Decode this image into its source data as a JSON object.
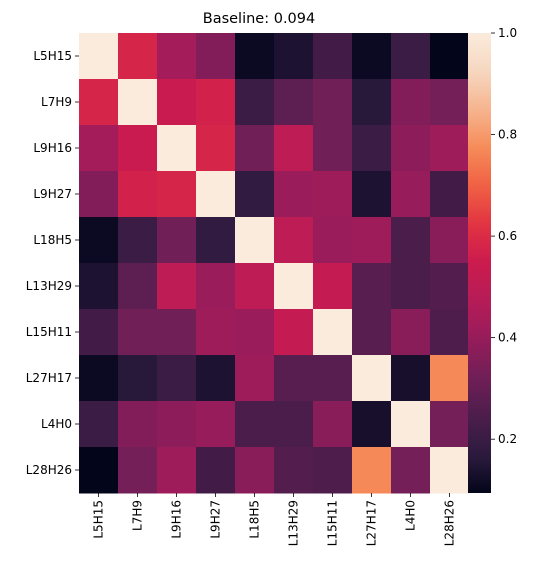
{
  "chart_data": {
    "type": "heatmap",
    "title": "Baseline: 0.094",
    "xlabel": "",
    "ylabel": "",
    "rows": [
      "L5H15",
      "L7H9",
      "L9H16",
      "L9H27",
      "L18H5",
      "L13H29",
      "L15H11",
      "L27H17",
      "L4H0",
      "L28H26"
    ],
    "cols": [
      "L5H15",
      "L7H9",
      "L9H16",
      "L9H27",
      "L18H5",
      "L13H29",
      "L15H11",
      "L27H17",
      "L4H0",
      "L28H26"
    ],
    "values": [
      [
        1.0,
        0.58,
        0.43,
        0.36,
        0.11,
        0.14,
        0.22,
        0.11,
        0.2,
        0.09
      ],
      [
        0.58,
        1.0,
        0.54,
        0.57,
        0.2,
        0.28,
        0.32,
        0.16,
        0.36,
        0.33
      ],
      [
        0.43,
        0.54,
        1.0,
        0.58,
        0.32,
        0.5,
        0.32,
        0.2,
        0.38,
        0.42
      ],
      [
        0.36,
        0.57,
        0.58,
        1.0,
        0.18,
        0.41,
        0.42,
        0.14,
        0.4,
        0.22
      ],
      [
        0.11,
        0.2,
        0.32,
        0.18,
        1.0,
        0.5,
        0.41,
        0.42,
        0.24,
        0.37
      ],
      [
        0.14,
        0.28,
        0.5,
        0.41,
        0.5,
        1.0,
        0.52,
        0.27,
        0.24,
        0.26
      ],
      [
        0.22,
        0.32,
        0.32,
        0.42,
        0.41,
        0.52,
        1.0,
        0.27,
        0.37,
        0.25
      ],
      [
        0.11,
        0.16,
        0.2,
        0.14,
        0.42,
        0.27,
        0.27,
        1.0,
        0.13,
        0.77
      ],
      [
        0.2,
        0.36,
        0.38,
        0.4,
        0.24,
        0.24,
        0.37,
        0.13,
        1.0,
        0.33
      ],
      [
        0.09,
        0.33,
        0.42,
        0.22,
        0.37,
        0.26,
        0.25,
        0.77,
        0.33,
        1.0
      ]
    ],
    "vmin": 0.094,
    "vmax": 1.0,
    "colorbar": {
      "ticks": [
        0.2,
        0.4,
        0.6,
        0.8,
        1.0
      ],
      "tick_labels": [
        "0.2",
        "0.4",
        "0.6",
        "0.8",
        "1.0"
      ]
    },
    "colormap": "rocket",
    "colormap_stops": [
      "#03051a",
      "#2d1b3f",
      "#4c1d4b",
      "#701f57",
      "#951c5b",
      "#b61c57",
      "#cb1b4f",
      "#e13342",
      "#f06043",
      "#f68b59",
      "#f6b48e",
      "#f6d7c0",
      "#faebdd"
    ]
  }
}
